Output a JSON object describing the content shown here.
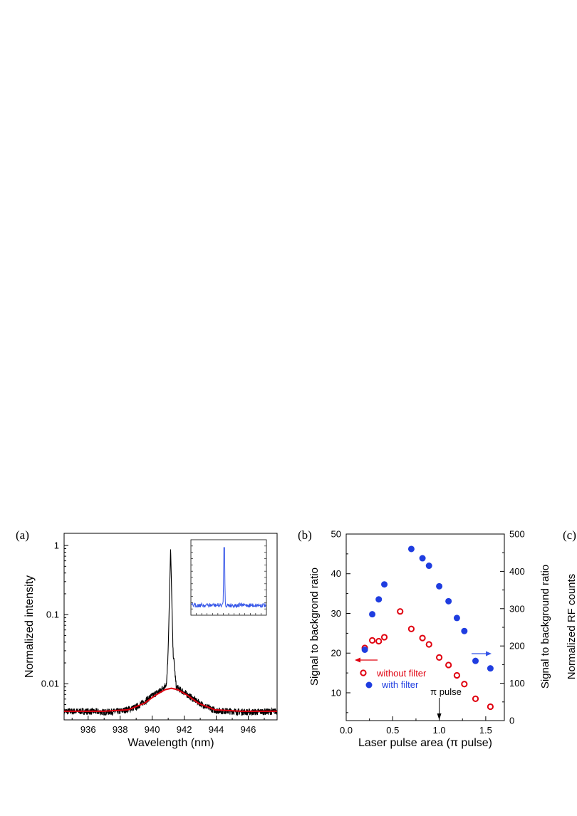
{
  "chart_data": [
    {
      "type": "line",
      "panel_label": "(a)",
      "xlabel": "Wavelength (nm)",
      "ylabel": "Normalized intensity",
      "xlim": [
        934.5,
        947.8
      ],
      "ylim": [
        0.003,
        1.5
      ],
      "yscale": "log",
      "xticks": [
        936,
        938,
        940,
        942,
        944,
        946
      ],
      "yticks": [
        {
          "value": 1,
          "label": "1"
        },
        {
          "value": 0.1,
          "label": "0.1"
        },
        {
          "value": 0.01,
          "label": "0.01"
        }
      ],
      "series": [
        {
          "color": "#000000",
          "description_points": [
            [
              934.5,
              0.004
            ],
            [
              936.0,
              0.004
            ],
            [
              937.0,
              0.0039
            ],
            [
              938.0,
              0.004
            ],
            [
              939.0,
              0.0046
            ],
            [
              939.5,
              0.0055
            ],
            [
              940.0,
              0.0067
            ],
            [
              940.5,
              0.008
            ],
            [
              940.9,
              0.01
            ],
            [
              941.0,
              0.03
            ],
            [
              941.1,
              0.3
            ],
            [
              941.15,
              0.92
            ],
            [
              941.2,
              0.3
            ],
            [
              941.3,
              0.03
            ],
            [
              941.5,
              0.009
            ],
            [
              942.0,
              0.0075
            ],
            [
              942.5,
              0.0062
            ],
            [
              943.0,
              0.0052
            ],
            [
              943.5,
              0.0045
            ],
            [
              944.0,
              0.0041
            ],
            [
              945.0,
              0.004
            ],
            [
              946.0,
              0.0039
            ],
            [
              947.8,
              0.004
            ]
          ]
        },
        {
          "color": "#e0000f",
          "description_points": [
            [
              934.5,
              0.004
            ],
            [
              937.0,
              0.004
            ],
            [
              938.5,
              0.0042
            ],
            [
              939.5,
              0.0052
            ],
            [
              940.2,
              0.0068
            ],
            [
              940.8,
              0.0082
            ],
            [
              941.2,
              0.0086
            ],
            [
              941.6,
              0.0082
            ],
            [
              942.2,
              0.0068
            ],
            [
              942.9,
              0.0052
            ],
            [
              943.9,
              0.0042
            ],
            [
              945.5,
              0.004
            ],
            [
              947.8,
              0.004
            ]
          ]
        }
      ],
      "inset": {
        "color": "#3555e8",
        "peak_position": 0.44
      }
    },
    {
      "type": "scatter",
      "panel_label": "(b)",
      "xlabel": "Laser pulse area (π pulse)",
      "ylabel_left": "Signal to backgrond ratio",
      "ylabel_right": "Signal to background ratio",
      "xlim": [
        0.0,
        1.7
      ],
      "ylim_left": [
        3,
        50
      ],
      "ylim_right": [
        0,
        500
      ],
      "xticks": [
        "0.0",
        "0.5",
        "1.0",
        "1.5"
      ],
      "yticks_left": [
        "10",
        "20",
        "30",
        "40",
        "50"
      ],
      "yticks_right": [
        "0",
        "100",
        "200",
        "300",
        "400",
        "500"
      ],
      "annotation": "π pulse",
      "annotation_x": 1.0,
      "series": [
        {
          "name": "without filter",
          "axis": "left",
          "marker": "open-circle",
          "color": "#e0000f",
          "x": [
            0.2,
            0.28,
            0.35,
            0.41,
            0.58,
            0.7,
            0.82,
            0.89,
            1.0,
            1.1,
            1.19,
            1.27,
            1.39,
            1.55
          ],
          "y": [
            21.3,
            23.2,
            23.0,
            24.0,
            30.5,
            26.1,
            23.8,
            22.2,
            18.9,
            17.0,
            14.4,
            12.2,
            8.5,
            6.5
          ]
        },
        {
          "name": "with filter",
          "axis": "right",
          "marker": "filled-circle",
          "color": "#1f3de0",
          "x": [
            0.2,
            0.28,
            0.35,
            0.41,
            0.7,
            0.82,
            0.89,
            1.0,
            1.1,
            1.19,
            1.27,
            1.39,
            1.55
          ],
          "y": [
            190,
            285,
            325,
            365,
            460,
            435,
            415,
            360,
            320,
            275,
            240,
            160,
            140
          ]
        }
      ]
    },
    {
      "type": "scatter",
      "panel_label": "(c)",
      "ylabel": "Normalized RF counts"
    }
  ]
}
